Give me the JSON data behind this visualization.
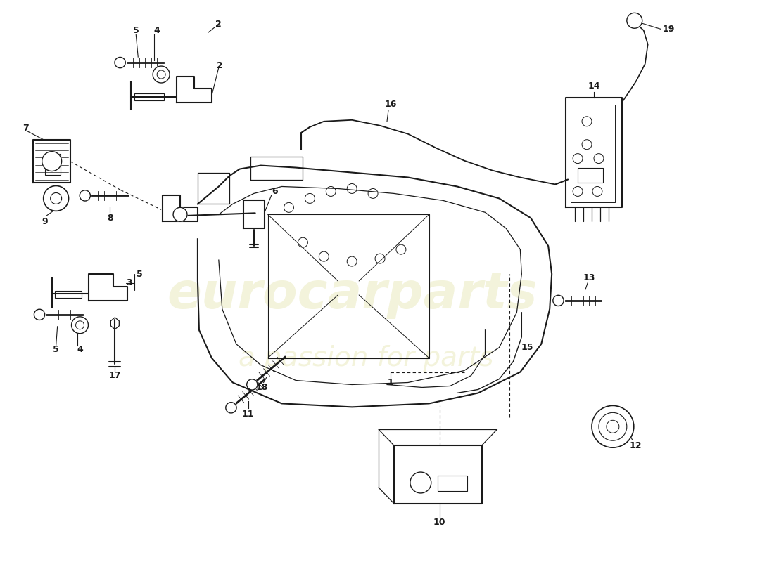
{
  "background_color": "#ffffff",
  "line_color": "#1a1a1a",
  "text_color": "#1a1a1a",
  "watermark_text1": "eurocarparts",
  "watermark_text2": "a passion for parts",
  "watermark_color": "#eeeecc"
}
